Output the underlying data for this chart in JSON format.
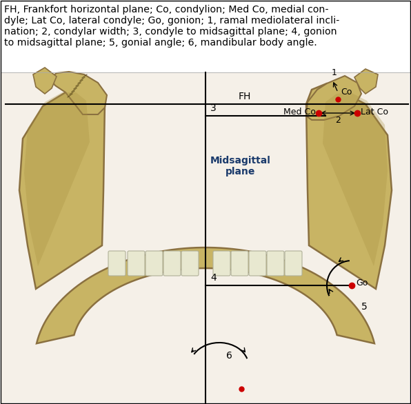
{
  "caption_lines": [
    "FH, Frankfort horizontal plane; Co, condylion; Med Co, medial con-",
    "dyle; Lat Co, lateral condyle; Go, gonion; 1, ramal mediolateral incli-",
    "nation; 2, condylar width; 3, condyle to midsagittal plane; 4, gonion",
    "to midsagittal plane; 5, gonial angle; 6, mandibular body angle."
  ],
  "caption_fontsize": 10.2,
  "background_color": "#ffffff",
  "border_color": "#000000",
  "text_color": "#000000",
  "blue_text_color": "#1a3a6b",
  "label_FH": "FH",
  "label_midsagittal": "Midsagittal\nplane",
  "label_3": "3",
  "label_4": "4",
  "label_6": "6",
  "label_5": "5",
  "label_1": "1",
  "label_2": "2",
  "label_Co": "Co",
  "label_LatCo": "Lat Co",
  "label_MedCo": "Med Co",
  "label_Go": "Go",
  "dot_color": "#cc0000",
  "line_color": "#000000",
  "bone_color": "#c8b464",
  "bone_edge": "#8a7040",
  "tooth_color": "#e8e8d0"
}
